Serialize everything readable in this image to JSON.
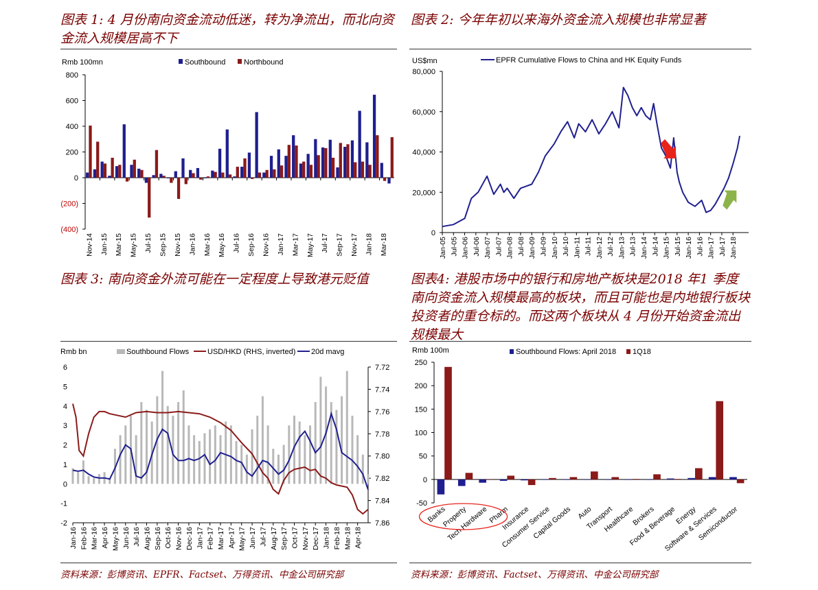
{
  "captions": {
    "fig1": "图表 1: 4 月份南向资金流动低迷，转为净流出，而北向资金流入规模居高不下",
    "fig2": "图表 2: 今年年初以来海外资金流入规模也非常显著",
    "fig3": "图表 3: 南向资金外流可能在一定程度上导致港元贬值",
    "fig4": "图表4: 港股市场中的银行和房地产板块是2018 年1 季度南向资金流入规模最高的板块，而且可能也是内地银行板块投资者的重仓标的。而这两个板块从 4 月份开始资金流出规模最大"
  },
  "sources": {
    "left": "资料来源：彭博资讯、EPFR、Factset、万得资讯、中金公司研究部",
    "right": "资料来源：彭博资讯、Factset、万得资讯、中金公司研究部"
  },
  "colors": {
    "navy": "#1f1f8f",
    "maroon": "#8b1a1a",
    "grey": "#b8b8b8",
    "red_arrow": "#e8231c",
    "green_arrow": "#8cb44a"
  },
  "chart_data": [
    {
      "id": "fig1",
      "type": "bar",
      "unit": "Rmb 100mn",
      "ylim": [
        -400,
        800
      ],
      "yticks": [
        800,
        600,
        400,
        200,
        0,
        -200,
        -400
      ],
      "ytick_labels": [
        "800",
        "600",
        "400",
        "200",
        "0",
        "(200)",
        "(400)"
      ],
      "x_tick_labels": [
        "Nov-14",
        "Jan-15",
        "Mar-15",
        "May-15",
        "Jul-15",
        "Sep-15",
        "Nov-15",
        "Jan-16",
        "Mar-16",
        "May-16",
        "Jul-16",
        "Sep-16",
        "Nov-16",
        "Jan-17",
        "Mar-17",
        "May-17",
        "Jul-17",
        "Sep-17",
        "Nov-17",
        "Jan-18",
        "Mar-18"
      ],
      "legend_position": "top",
      "series": [
        {
          "name": "Southbound",
          "color": "#1f1f8f",
          "values": [
            40,
            65,
            125,
            15,
            90,
            415,
            100,
            70,
            -40,
            20,
            30,
            -5,
            50,
            150,
            60,
            75,
            -5,
            55,
            225,
            375,
            10,
            85,
            195,
            510,
            40,
            170,
            220,
            170,
            330,
            110,
            185,
            300,
            235,
            295,
            80,
            240,
            290,
            520,
            275,
            645,
            115,
            -45
          ]
        },
        {
          "name": "Northbound",
          "color": "#8b1a1a",
          "values": [
            405,
            280,
            110,
            155,
            100,
            -30,
            140,
            60,
            -310,
            215,
            15,
            -40,
            -165,
            -50,
            35,
            -15,
            10,
            45,
            40,
            25,
            85,
            150,
            -10,
            40,
            60,
            65,
            95,
            255,
            250,
            125,
            100,
            175,
            230,
            155,
            270,
            260,
            120,
            125,
            100,
            330,
            -25,
            315
          ]
        }
      ]
    },
    {
      "id": "fig2",
      "type": "line",
      "unit": "US$mn",
      "ylim": [
        0,
        80000
      ],
      "yticks": [
        0,
        20000,
        40000,
        60000,
        80000
      ],
      "ytick_labels": [
        "0",
        "20,000",
        "40,000",
        "60,000",
        "80,000"
      ],
      "x_tick_labels": [
        "Jan-05",
        "Jul-05",
        "Jan-06",
        "Jul-06",
        "Jan-07",
        "Jul-07",
        "Jan-08",
        "Jul-08",
        "Jan-09",
        "Jul-09",
        "Jan-10",
        "Jul-10",
        "Jan-11",
        "Jul-11",
        "Jan-12",
        "Jul-12",
        "Jan-13",
        "Jul-13",
        "Jan-14",
        "Jul-14",
        "Jan-15",
        "Jul-15",
        "Jan-16",
        "Jul-16",
        "Jan-17",
        "Jul-17",
        "Jan-18"
      ],
      "x": [
        2005.0,
        2005.5,
        2006.0,
        2006.3,
        2006.6,
        2007.0,
        2007.3,
        2007.6,
        2007.75,
        2007.9,
        2008.2,
        2008.5,
        2008.75,
        2009.0,
        2009.3,
        2009.6,
        2010.0,
        2010.3,
        2010.6,
        2010.9,
        2011.1,
        2011.4,
        2011.7,
        2012.0,
        2012.3,
        2012.6,
        2012.9,
        2013.1,
        2013.3,
        2013.5,
        2013.7,
        2013.9,
        2014.1,
        2014.3,
        2014.45,
        2014.6,
        2014.8,
        2015.0,
        2015.2,
        2015.35,
        2015.5,
        2015.6,
        2015.75,
        2016.0,
        2016.3,
        2016.6,
        2016.8,
        2017.0,
        2017.2,
        2017.4,
        2017.6,
        2017.8,
        2018.0,
        2018.2,
        2018.3
      ],
      "values": [
        3000,
        4000,
        7000,
        17000,
        20000,
        28000,
        19000,
        24000,
        20000,
        22000,
        17000,
        22000,
        23000,
        24000,
        30000,
        38000,
        44000,
        50000,
        55000,
        47000,
        54000,
        50000,
        56000,
        49000,
        54000,
        60000,
        52000,
        72000,
        68000,
        62000,
        58000,
        62000,
        58000,
        56000,
        64000,
        54000,
        42000,
        38000,
        32000,
        47000,
        30000,
        25000,
        20000,
        15000,
        13000,
        16000,
        10000,
        11000,
        14000,
        18000,
        22000,
        27000,
        34000,
        42000,
        48000
      ],
      "series_name": "EPFR Cumulative Flows to China and HK Equity Funds",
      "legend_position": "top",
      "annotations": [
        {
          "kind": "arrow-down",
          "color": "#e8231c",
          "x": 2015.2,
          "y": 37500
        },
        {
          "kind": "arrow-up",
          "color": "#8cb44a",
          "x": 2017.85,
          "y": 17500
        }
      ]
    },
    {
      "id": "fig3",
      "type": "bar+line",
      "unit": "Rmb bn",
      "ylim": [
        -2,
        6
      ],
      "yticks": [
        6,
        5,
        4,
        3,
        2,
        1,
        0,
        -1,
        -2
      ],
      "y2lim": [
        7.72,
        7.86
      ],
      "y2_inverted": true,
      "y2ticks": [
        7.72,
        7.74,
        7.76,
        7.78,
        7.8,
        7.82,
        7.84,
        7.86
      ],
      "y2tick_labels": [
        "7.72",
        "7.74",
        "7.76",
        "7.78",
        "7.80",
        "7.82",
        "7.84",
        "7.86"
      ],
      "x_tick_labels": [
        "Jan-16",
        "Feb-16",
        "Mar-16",
        "Apr-16",
        "May-16",
        "Jun-16",
        "Jul-16",
        "Aug-16",
        "Sep-16",
        "Oct-16",
        "Nov-16",
        "Dec-16",
        "Jan-17",
        "Feb-17",
        "Mar-17",
        "Apr-17",
        "May-17",
        "Jun-17",
        "Jul-17",
        "Aug-17",
        "Sep-17",
        "Oct-17",
        "Nov-17",
        "Dec-17",
        "Jan-18",
        "Feb-18",
        "Mar-18",
        "Apr-18"
      ],
      "legend_position": "top",
      "series": [
        {
          "name": "Southbound Flows",
          "color": "#b8b8b8",
          "axis": "left",
          "style": "bars",
          "x": [
            0,
            0.5,
            1,
            1.5,
            2,
            2.5,
            3,
            3.5,
            4,
            4.5,
            5,
            5.5,
            6,
            6.5,
            7,
            7.5,
            8,
            8.5,
            9,
            9.5,
            10,
            10.5,
            11,
            11.5,
            12,
            12.5,
            13,
            13.5,
            14,
            14.5,
            15,
            15.5,
            16,
            16.5,
            17,
            17.5,
            18,
            18.5,
            19,
            19.5,
            20,
            20.5,
            21,
            21.5,
            22,
            22.5,
            23,
            23.5,
            24,
            24.5,
            25,
            25.5,
            26,
            26.5,
            27,
            27.5,
            28
          ],
          "values": [
            0.8,
            0.6,
            1.2,
            0.4,
            0.3,
            0.5,
            0.6,
            0.3,
            1.8,
            2.5,
            3.0,
            3.5,
            2.5,
            4.2,
            3.8,
            3.2,
            4.5,
            5.8,
            4.0,
            3.5,
            4.2,
            4.8,
            3.0,
            2.5,
            2.2,
            2.6,
            2.8,
            3.0,
            2.5,
            3.2,
            3.0,
            2.2,
            2.0,
            1.5,
            2.8,
            3.5,
            4.5,
            3.0,
            1.8,
            1.5,
            2.0,
            3.0,
            3.5,
            3.2,
            2.5,
            3.0,
            4.2,
            5.5,
            5.0,
            4.2,
            3.8,
            4.5,
            5.8,
            3.5,
            2.5,
            1.5,
            0.5
          ]
        },
        {
          "name": "USD/HKD (RHS, inverted)",
          "color": "#8b1a1a",
          "axis": "right",
          "style": "line",
          "x": [
            0,
            0.3,
            0.6,
            1.0,
            1.5,
            2.0,
            2.5,
            3.0,
            3.5,
            4.0,
            5.0,
            6.0,
            7.0,
            8.0,
            9.0,
            10.0,
            11.0,
            12.0,
            13.0,
            14.0,
            15.0,
            16.0,
            17.0,
            18.0,
            18.5,
            19.0,
            19.5,
            20.0,
            20.5,
            21.0,
            21.5,
            22.0,
            22.5,
            23.0,
            23.5,
            24.0,
            24.5,
            25.0,
            25.5,
            26.0,
            26.5,
            27.0,
            27.5,
            28.0
          ],
          "values": [
            7.753,
            7.765,
            7.795,
            7.8,
            7.78,
            7.765,
            7.76,
            7.76,
            7.762,
            7.763,
            7.765,
            7.761,
            7.76,
            7.761,
            7.761,
            7.76,
            7.761,
            7.762,
            7.765,
            7.77,
            7.777,
            7.788,
            7.798,
            7.815,
            7.82,
            7.83,
            7.834,
            7.822,
            7.815,
            7.812,
            7.811,
            7.81,
            7.813,
            7.812,
            7.818,
            7.82,
            7.824,
            7.826,
            7.827,
            7.828,
            7.835,
            7.848,
            7.852,
            7.848
          ]
        },
        {
          "name": "20d mavg",
          "color": "#1f1f8f",
          "axis": "left",
          "style": "line",
          "x": [
            0,
            0.5,
            1,
            1.5,
            2,
            2.5,
            3,
            3.5,
            4,
            4.5,
            5,
            5.5,
            6,
            6.5,
            7,
            7.5,
            8,
            8.5,
            9,
            9.5,
            10,
            10.5,
            11,
            11.5,
            12,
            12.5,
            13,
            13.5,
            14,
            14.5,
            15,
            15.5,
            16,
            16.5,
            17,
            17.5,
            18,
            18.5,
            19,
            19.5,
            20,
            20.5,
            21,
            21.5,
            22,
            22.5,
            23,
            23.5,
            24,
            24.5,
            25,
            25.5,
            26,
            26.5,
            27,
            27.5,
            28
          ],
          "values": [
            0.7,
            0.65,
            0.7,
            0.5,
            0.35,
            0.3,
            0.3,
            0.25,
            0.8,
            1.5,
            2.0,
            1.8,
            0.4,
            0.3,
            0.6,
            1.5,
            2.3,
            2.8,
            2.6,
            1.5,
            1.2,
            1.2,
            1.3,
            1.2,
            1.3,
            1.5,
            1.0,
            1.2,
            1.6,
            1.5,
            1.4,
            1.2,
            1.1,
            0.6,
            0.4,
            0.8,
            1.2,
            1.1,
            0.8,
            0.5,
            0.7,
            1.2,
            1.9,
            2.4,
            2.7,
            2.2,
            1.6,
            1.9,
            2.6,
            3.6,
            2.8,
            1.6,
            1.4,
            1.2,
            0.9,
            0.5,
            -0.3
          ]
        }
      ]
    },
    {
      "id": "fig4",
      "type": "bar",
      "unit": "Rmb 100m",
      "ylim": [
        -50,
        250
      ],
      "yticks": [
        250,
        200,
        150,
        100,
        50,
        0,
        -50
      ],
      "legend_position": "top",
      "categories": [
        "Banks",
        "Property",
        "Tech Hardware",
        "Pharm",
        "Insurance",
        "Consumer Service",
        "Capital Goods",
        "Auto",
        "Transport",
        "Healthcare",
        "Brokers",
        "Food & Beverage",
        "Energy",
        "Software & Services",
        "Semiconductor"
      ],
      "series": [
        {
          "name": "Southbound Flows: April 2018",
          "color": "#1f1f8f",
          "values": [
            -32,
            -14,
            -7,
            -3,
            -2,
            -1,
            -1,
            0,
            -1,
            -1,
            -1,
            2,
            3,
            5,
            5
          ]
        },
        {
          "name": "1Q18",
          "color": "#8b1a1a",
          "values": [
            240,
            14,
            0,
            8,
            -12,
            3,
            5,
            17,
            5,
            1,
            11,
            1,
            24,
            167,
            -8
          ]
        }
      ],
      "highlight": {
        "kind": "ellipse",
        "color": "#e8231c",
        "categories": [
          "Banks",
          "Property",
          "Tech Hardware"
        ]
      }
    }
  ]
}
